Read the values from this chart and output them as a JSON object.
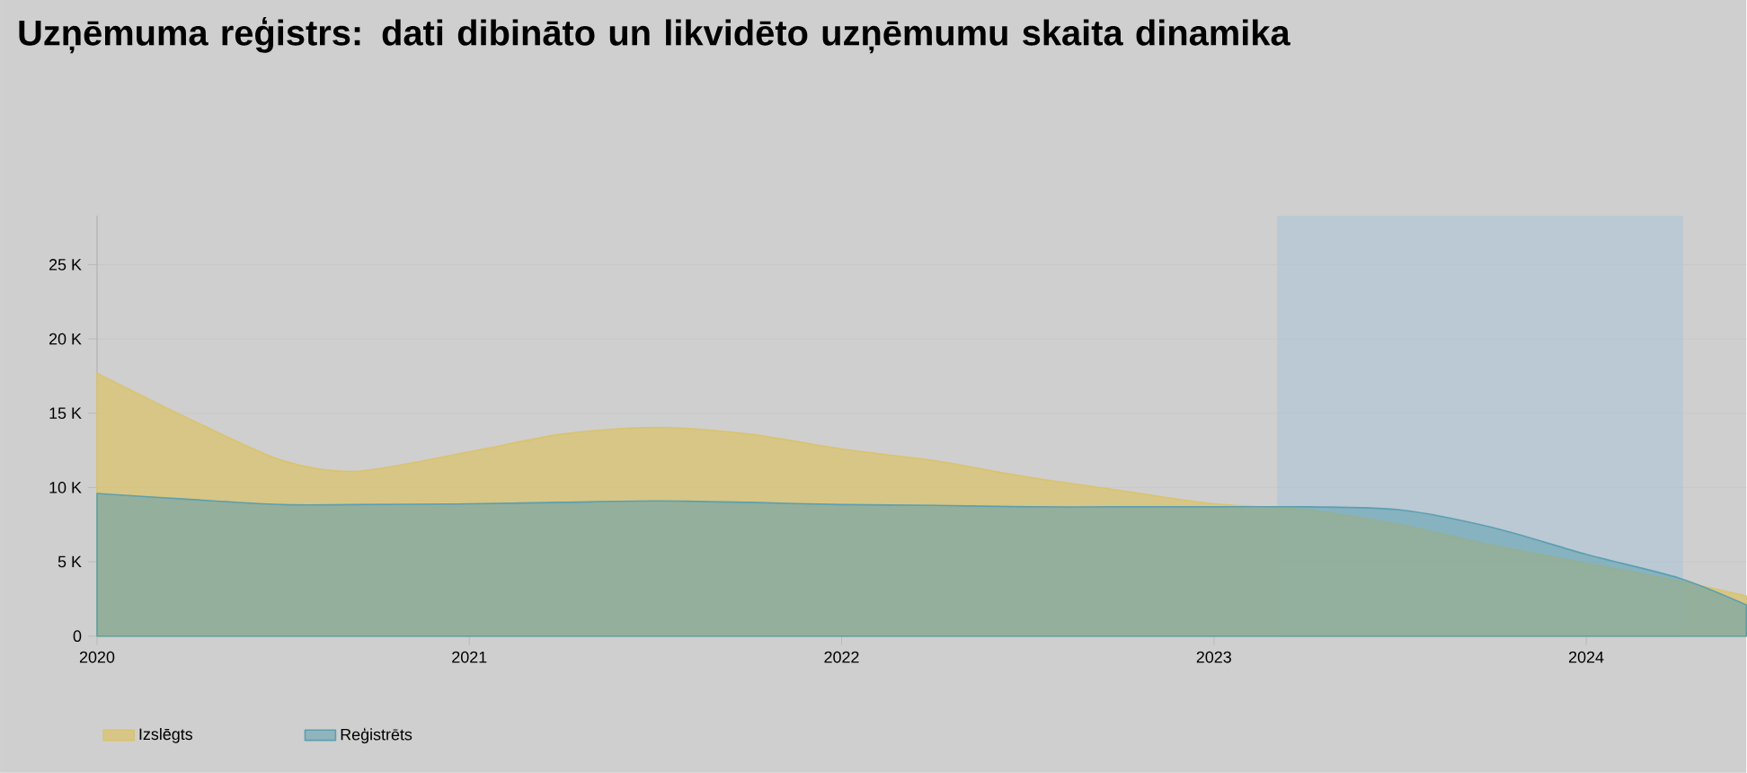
{
  "chart_data": {
    "type": "area",
    "title": "Uzņēmuma reģistrs: dati dibināto un likvidēto uzņēmumu skaita dinamika",
    "x": [
      2020,
      2020.25,
      2020.5,
      2020.7,
      2021,
      2021.25,
      2021.5,
      2021.75,
      2022,
      2022.25,
      2022.5,
      2022.75,
      2023,
      2023.25,
      2023.5,
      2023.75,
      2024,
      2024.25,
      2024.43
    ],
    "series": [
      {
        "name": "Izslēgts",
        "color": "#d9c36e",
        "values": [
          17700,
          14600,
          11800,
          11100,
          12400,
          13600,
          14050,
          13600,
          12600,
          11800,
          10700,
          9800,
          8900,
          8500,
          7500,
          6100,
          4900,
          3700,
          2700
        ]
      },
      {
        "name": "Reģistrēts",
        "color": "#5c9fae",
        "values": [
          9600,
          9200,
          8850,
          8850,
          8900,
          9000,
          9100,
          9000,
          8850,
          8800,
          8700,
          8700,
          8700,
          8700,
          8500,
          7300,
          5500,
          3900,
          2100
        ]
      }
    ],
    "xlim": [
      2020,
      2024.43
    ],
    "xticks": [
      2020,
      2021,
      2022,
      2023,
      2024
    ],
    "ylim": [
      0,
      28300
    ],
    "yticks": [
      0,
      {
        "value": 5000,
        "label": "5 K"
      },
      {
        "value": 10000,
        "label": "10 K"
      },
      {
        "value": 15000,
        "label": "15 K"
      },
      {
        "value": 20000,
        "label": "20 K"
      },
      {
        "value": 25000,
        "label": "25 K"
      }
    ],
    "grid": "y",
    "legend": "bottom left",
    "bands": [
      {
        "axis": "x",
        "from": 2023.17,
        "to": 2024.26,
        "color": "#aac4d8"
      }
    ]
  }
}
